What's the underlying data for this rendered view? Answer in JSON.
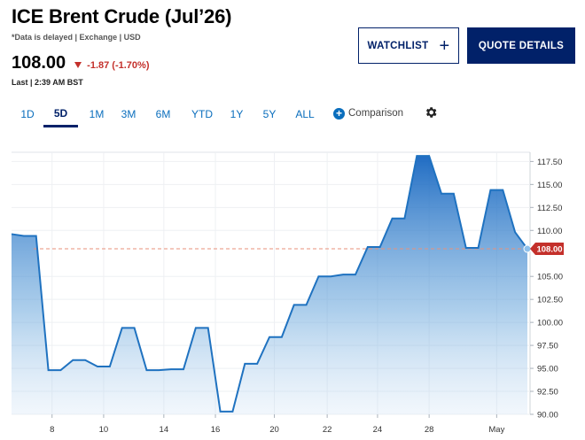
{
  "header": {
    "title": "ICE Brent Crude (Jul’26)",
    "meta": "*Data is delayed | Exchange | USD",
    "price": "108.00",
    "change": "-1.87 (-1.70%)",
    "last": "Last | 2:39 AM BST"
  },
  "buttons": {
    "watchlist": "WATCHLIST",
    "quote_details": "QUOTE DETAILS"
  },
  "tabs": [
    "1D",
    "5D",
    "1M",
    "3M",
    "6M",
    "YTD",
    "1Y",
    "5Y",
    "ALL"
  ],
  "active_tab": "5D",
  "comparison_label": "Comparison",
  "icons": {
    "change_direction": "down-triangle-icon",
    "watchlist_add": "plus-icon",
    "comparison": "plus-circle-icon",
    "settings": "gear-icon"
  },
  "colors": {
    "brand": "#012169",
    "accent": "#0a6ebd",
    "negative": "#c4302b",
    "line": "#1f72c0",
    "reference_line": "#e8907a"
  },
  "chart_data": {
    "type": "area",
    "x_tick_labels": [
      "8",
      "10",
      "14",
      "16",
      "20",
      "22",
      "24",
      "28",
      "May"
    ],
    "y_ticks": [
      "117.50",
      "115.00",
      "112.50",
      "110.00",
      "108.00",
      "105.00",
      "102.50",
      "100.00",
      "97.50",
      "95.00",
      "92.50",
      "90.00"
    ],
    "ylim": [
      90,
      118.5
    ],
    "current_value": "108.00",
    "reference_level": 108.0,
    "series": [
      {
        "values": [
          109.6,
          109.4,
          109.4,
          94.8,
          94.8,
          95.9,
          95.9,
          95.2,
          95.2,
          99.4,
          99.4,
          94.8,
          94.8,
          94.9,
          94.9,
          99.4,
          99.4,
          90.3,
          90.3,
          95.5,
          95.5,
          98.4,
          98.4,
          101.9,
          101.9,
          105.0,
          105.0,
          105.2,
          105.2,
          108.2,
          108.2,
          111.3,
          111.3,
          118.1,
          118.1,
          114.0,
          114.0,
          108.1,
          108.1,
          114.4,
          114.4,
          109.8,
          108.0
        ]
      }
    ]
  }
}
